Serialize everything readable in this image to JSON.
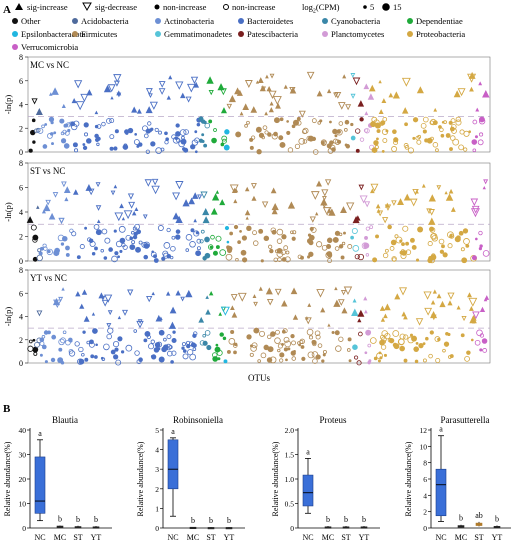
{
  "panel_a_label": "A",
  "panel_b_label": "B",
  "legend": {
    "markers": [
      {
        "label": "sig-increase",
        "marker": "filled-triangle-up"
      },
      {
        "label": "sig-decrease",
        "marker": "open-triangle-down"
      },
      {
        "label": "non-increase",
        "marker": "filled-circle"
      },
      {
        "label": "non-increase",
        "marker": "open-circle"
      }
    ],
    "size_title_main": "log",
    "size_title_sub": "2",
    "size_title_rest": "(CPM)",
    "size_values": [
      "5",
      "15"
    ],
    "phyla": [
      {
        "name": "Other",
        "color": "#111111"
      },
      {
        "name": "Acidobacteria",
        "color": "#4e6a9c"
      },
      {
        "name": "Actinobacteria",
        "color": "#6d8fd4"
      },
      {
        "name": "Bacteroidetes",
        "color": "#4a6fc4"
      },
      {
        "name": "Cyanobacteria",
        "color": "#3a87a8"
      },
      {
        "name": "Dependentiae",
        "color": "#1faa3a"
      },
      {
        "name": "Epsilonbacteraeota",
        "color": "#21b6e0"
      },
      {
        "name": "Firmicutes",
        "color": "#b08a55"
      },
      {
        "name": "Gemmatimonadetes",
        "color": "#56c4d8"
      },
      {
        "name": "Patescibacteria",
        "color": "#7a1f1f"
      },
      {
        "name": "Planctomycetes",
        "color": "#d29bd6"
      },
      {
        "name": "Proteobacteria",
        "color": "#d4a843"
      },
      {
        "name": "Verrucomicrobia",
        "color": "#c85fc6"
      }
    ]
  },
  "manhattan": {
    "y_axis_label": "-ln(p)",
    "x_axis_label": "OTUs",
    "y_ticks": [
      "0",
      "2",
      "4",
      "6",
      "8"
    ],
    "threshold": 3,
    "panels": [
      {
        "title": "MC vs NC"
      },
      {
        "title": "ST vs NC"
      },
      {
        "title": "YT vs NC"
      }
    ]
  },
  "chart_data": [
    {
      "type": "box",
      "title": "Blautia",
      "ylabel": "Relative abundance(%)",
      "categories": [
        "NC",
        "MC",
        "ST",
        "YT"
      ],
      "ylim": [
        0,
        40
      ],
      "yticks": [
        0,
        10,
        20,
        30,
        40
      ],
      "boxes": [
        {
          "min": 3,
          "q1": 6,
          "median": 11,
          "q3": 29,
          "max": 36
        },
        {
          "min": 0.1,
          "q1": 0.3,
          "median": 0.5,
          "q3": 0.8,
          "max": 1
        },
        {
          "min": 0.1,
          "q1": 0.2,
          "median": 0.4,
          "q3": 0.6,
          "max": 0.9
        },
        {
          "min": 0.1,
          "q1": 0.2,
          "median": 0.3,
          "q3": 0.5,
          "max": 0.8
        }
      ],
      "letters": [
        "a",
        "b",
        "b",
        "b"
      ],
      "box_colors": [
        "#3a6fd8",
        "#222222",
        "#222222",
        "#222222"
      ]
    },
    {
      "type": "box",
      "title": "Robinsoniella",
      "ylabel": "Relative abundance(%)",
      "categories": [
        "NC",
        "MC",
        "ST",
        "YT"
      ],
      "ylim": [
        0,
        5
      ],
      "yticks": [
        0,
        1,
        2,
        3,
        4,
        5
      ],
      "boxes": [
        {
          "min": 0.6,
          "q1": 2.0,
          "median": 3.0,
          "q3": 4.5,
          "max": 4.6
        },
        {
          "min": 0,
          "q1": 0.01,
          "median": 0.02,
          "q3": 0.04,
          "max": 0.05
        },
        {
          "min": 0,
          "q1": 0.01,
          "median": 0.02,
          "q3": 0.03,
          "max": 0.05
        },
        {
          "min": 0,
          "q1": 0.01,
          "median": 0.02,
          "q3": 0.03,
          "max": 0.05
        }
      ],
      "letters": [
        "a",
        "b",
        "b",
        "b"
      ],
      "box_colors": [
        "#3a6fd8",
        "#222222",
        "#222222",
        "#222222"
      ]
    },
    {
      "type": "box",
      "title": "Proteus",
      "ylabel": "Relative abundance(%)",
      "categories": [
        "NC",
        "MC",
        "ST",
        "YT"
      ],
      "ylim": [
        0,
        2.0
      ],
      "yticks": [
        "0",
        "0.5",
        "1.0",
        "1.5",
        "2.0"
      ],
      "boxes": [
        {
          "min": 0.3,
          "q1": 0.45,
          "median": 0.72,
          "q3": 1.08,
          "max": 1.42
        },
        {
          "min": 0,
          "q1": 0.01,
          "median": 0.015,
          "q3": 0.025,
          "max": 0.04
        },
        {
          "min": 0,
          "q1": 0.01,
          "median": 0.015,
          "q3": 0.025,
          "max": 0.04
        },
        {
          "min": 0,
          "q1": 0.01,
          "median": 0.015,
          "q3": 0.025,
          "max": 0.04
        }
      ],
      "letters": [
        "a",
        "b",
        "b",
        "b"
      ],
      "box_colors": [
        "#3a6fd8",
        "#222222",
        "#222222",
        "#222222"
      ]
    },
    {
      "type": "box",
      "title": "Parasutterella",
      "ylabel": "Relative abundance(%)",
      "categories": [
        "NC",
        "MC",
        "ST",
        "YT"
      ],
      "ylim": [
        0,
        12
      ],
      "yticks": [
        0,
        2,
        4,
        6,
        8,
        10,
        12
      ],
      "boxes": [
        {
          "min": 0.8,
          "q1": 1.5,
          "median": 5.3,
          "q3": 7.2,
          "max": 11.3
        },
        {
          "min": 0.05,
          "q1": 0.1,
          "median": 0.2,
          "q3": 0.3,
          "max": 0.4
        },
        {
          "min": 0.2,
          "q1": 0.3,
          "median": 0.45,
          "q3": 0.6,
          "max": 0.75
        },
        {
          "min": 0.05,
          "q1": 0.1,
          "median": 0.15,
          "q3": 0.2,
          "max": 0.3
        }
      ],
      "letters": [
        "a",
        "b",
        "ab",
        "b"
      ],
      "box_colors": [
        "#3a6fd8",
        "#222222",
        "#b07a2a",
        "#222222"
      ]
    }
  ]
}
